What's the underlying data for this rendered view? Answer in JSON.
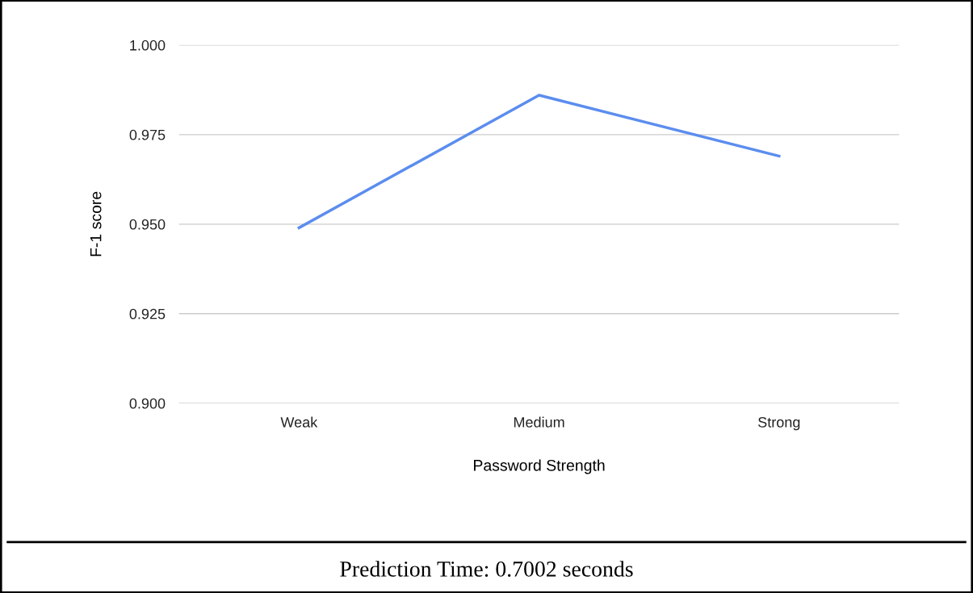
{
  "chart_data": {
    "type": "line",
    "xlabel": "Password Strength",
    "ylabel": "F-1 score",
    "categories": [
      "Weak",
      "Medium",
      "Strong"
    ],
    "series": [
      {
        "color": "#5b8def",
        "values": [
          0.949,
          0.986,
          0.969
        ]
      }
    ],
    "ylim": [
      0.9,
      1.0
    ],
    "yticks": [
      {
        "value": 0.9,
        "label": "0.900"
      },
      {
        "value": 0.925,
        "label": "0.925"
      },
      {
        "value": 0.95,
        "label": "0.950"
      },
      {
        "value": 0.975,
        "label": "0.975"
      },
      {
        "value": 1.0,
        "label": "1.000"
      }
    ],
    "grid": "y",
    "legend": false,
    "marker": "none",
    "line_style": "solid",
    "annotations": [
      "Prediction Time: 0.7002 seconds"
    ]
  }
}
